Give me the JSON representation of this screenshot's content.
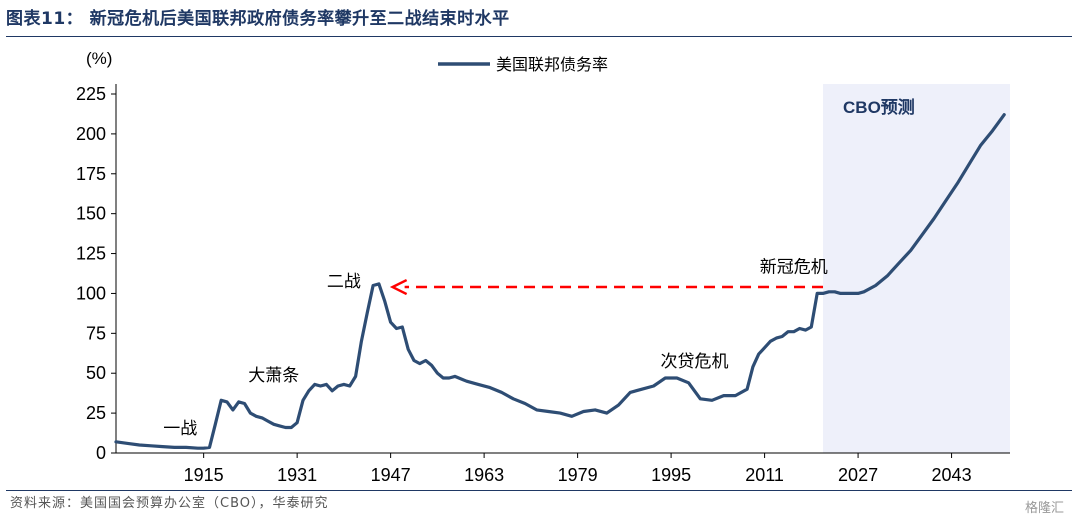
{
  "header": {
    "title": "图表11：  新冠危机后美国联邦政府债务率攀升至二战结束时水平"
  },
  "footer": {
    "source": "资料来源：美国国会预算办公室（CBO），华泰研究",
    "watermark": "格隆汇"
  },
  "colors": {
    "series": "#2e4d74",
    "arrow": "#ff0000",
    "forecast_shade": "#eef0fa",
    "title": "#1f3864"
  },
  "chart_data": {
    "type": "line",
    "title": "",
    "ylabel": "(%)",
    "xlabel": "",
    "ylim": [
      0,
      225
    ],
    "xlim": [
      1900,
      2053
    ],
    "yticks": [
      0,
      25,
      50,
      75,
      100,
      125,
      150,
      175,
      200,
      225
    ],
    "xticks": [
      1915,
      1931,
      1947,
      1963,
      1979,
      1995,
      2011,
      2027,
      2043
    ],
    "grid": false,
    "legend_position": "top-center",
    "forecast_region": {
      "start": 2021,
      "end": 2053,
      "label": "CBO预测"
    },
    "series": [
      {
        "name": "美国联邦债务率",
        "x": [
          1900,
          1902,
          1904,
          1906,
          1908,
          1910,
          1912,
          1914,
          1915,
          1916,
          1917,
          1918,
          1919,
          1920,
          1921,
          1922,
          1923,
          1924,
          1925,
          1926,
          1927,
          1928,
          1929,
          1930,
          1931,
          1932,
          1933,
          1934,
          1935,
          1936,
          1937,
          1938,
          1939,
          1940,
          1941,
          1942,
          1943,
          1944,
          1945,
          1946,
          1947,
          1948,
          1949,
          1950,
          1951,
          1952,
          1953,
          1954,
          1955,
          1956,
          1957,
          1958,
          1960,
          1962,
          1964,
          1966,
          1968,
          1970,
          1972,
          1974,
          1976,
          1978,
          1980,
          1982,
          1984,
          1986,
          1988,
          1990,
          1992,
          1994,
          1996,
          1998,
          2000,
          2002,
          2004,
          2006,
          2008,
          2009,
          2010,
          2011,
          2012,
          2013,
          2014,
          2015,
          2016,
          2017,
          2018,
          2019,
          2020,
          2021,
          2022,
          2023,
          2024,
          2025,
          2026,
          2027,
          2028,
          2030,
          2032,
          2034,
          2036,
          2038,
          2040,
          2042,
          2044,
          2046,
          2048,
          2050,
          2052
        ],
        "values": [
          7,
          6,
          5,
          4.5,
          4,
          3.5,
          3.5,
          3,
          3,
          3.5,
          18,
          33,
          32,
          27,
          32,
          31,
          25,
          23,
          22,
          20,
          18,
          17,
          16,
          16,
          19,
          33,
          39,
          43,
          42,
          43,
          39,
          42,
          43,
          42,
          48,
          70,
          88,
          105,
          106,
          95,
          82,
          78,
          79,
          65,
          58,
          56,
          58,
          55,
          50,
          47,
          47,
          48,
          45,
          43,
          41,
          38,
          34,
          31,
          27,
          26,
          25,
          23,
          26,
          27,
          25,
          30,
          38,
          40,
          42,
          47,
          47,
          44,
          34,
          33,
          36,
          36,
          40,
          54,
          62,
          66,
          70,
          72,
          73,
          76,
          76,
          78,
          77,
          79,
          100,
          100,
          101,
          101,
          100,
          100,
          100,
          100,
          101,
          105,
          111,
          119,
          127,
          137,
          147,
          158,
          169,
          181,
          193,
          202,
          212
        ]
      }
    ],
    "annotations": [
      {
        "text": "一战",
        "x": 1911,
        "y": 12
      },
      {
        "text": "大萧条",
        "x": 1927,
        "y": 45
      },
      {
        "text": "二战",
        "x": 1939,
        "y": 104
      },
      {
        "text": "次贷危机",
        "x": 1999,
        "y": 54
      },
      {
        "text": "新冠危机",
        "x": 2016,
        "y": 113
      }
    ],
    "arrow": {
      "from": {
        "x": 2021,
        "y": 104
      },
      "to": {
        "x": 1947,
        "y": 104
      }
    }
  }
}
